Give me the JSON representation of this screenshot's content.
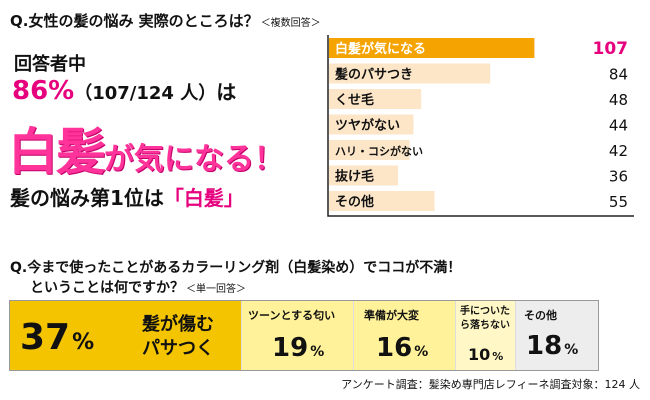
{
  "question1": {
    "text": "Q.女性の髪の悩み 実際のところは？",
    "note": "＜複数回答＞"
  },
  "summary": {
    "respondents_label": "回答者中",
    "percent": "86%",
    "count_paren": "（107/124 人）",
    "ha": "は",
    "headline_big": "白髪",
    "headline_rest": "が気になる！",
    "rank_prefix": "髪の悩み第1位は",
    "rank_highlight": "「白髪」"
  },
  "colors": {
    "accent_pink": "#e6007e",
    "top_bar": "#f5a300",
    "other_bars": "#fde6c8",
    "yellow": "#f4c400",
    "light_yellow": "#fff29a"
  },
  "chart_data": [
    {
      "type": "bar",
      "orientation": "horizontal",
      "categories": [
        "白髪が気になる",
        "髪のパサつき",
        "くせ毛",
        "ツヤがない",
        "ハリ・コシがない",
        "抜け毛",
        "その他"
      ],
      "values": [
        107,
        84,
        48,
        44,
        42,
        36,
        55
      ],
      "value_labels": [
        "107",
        "84",
        "48",
        "44",
        "42",
        "36",
        "55"
      ],
      "xlim": [
        0,
        124
      ],
      "grid": false,
      "legend": "none"
    },
    {
      "type": "bar",
      "orientation": "horizontal-stacked-100",
      "categories": [
        "髪が傷む パサつく",
        "ツーンとする匂い",
        "準備が大変",
        "手についたら落ちない",
        "その他"
      ],
      "values": [
        37,
        19,
        16,
        10,
        18
      ],
      "unit": "%"
    }
  ],
  "question2": {
    "line1": "Q.今まで使ったことがあるカラーリング剤（白髪染め）でココが不満！",
    "line2": "ということは何ですか？",
    "note": "＜単一回答＞"
  },
  "strip": [
    {
      "label": "髪が傷む パサつく",
      "value": "37",
      "unit": "%"
    },
    {
      "label": "ツーンとする匂い",
      "value": "19",
      "unit": "%"
    },
    {
      "label": "準備が大変",
      "value": "16",
      "unit": "%"
    },
    {
      "label": "手についたら落ちない",
      "value": "10",
      "unit": "%"
    },
    {
      "label": "その他",
      "value": "18",
      "unit": "%"
    }
  ],
  "footer": "アンケート調査：髪染め専門店レフィーネ調査対象：124 人"
}
